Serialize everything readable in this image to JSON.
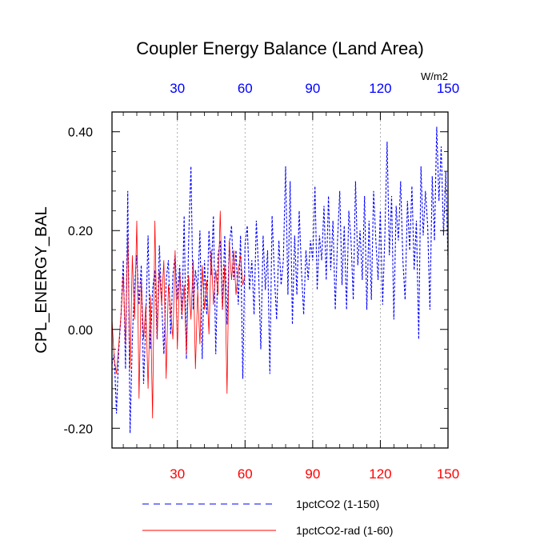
{
  "chart_data": {
    "type": "line",
    "title": "Coupler Energy Balance (Land Area)",
    "ylabel": "CPL_ENERGY_BAL",
    "units_label": "W/m2",
    "xlim": [
      1,
      150
    ],
    "ylim": [
      -0.24,
      0.44
    ],
    "xticks": [
      30,
      60,
      90,
      120,
      150
    ],
    "yticks": [
      -0.2,
      0.0,
      0.2,
      0.4
    ],
    "ytick_labels": [
      "-0.20",
      "0.00",
      "0.20",
      "0.40"
    ],
    "top_axis_color": "#0000ff",
    "bottom_axis_color": "#ff0000",
    "gridlines_x": [
      30,
      60,
      90,
      120
    ],
    "legend_position": "bottom",
    "series": [
      {
        "name": "1pctCO2 (1-150)",
        "color": "#0000ff",
        "style": "dashed",
        "x": [
          1,
          2,
          3,
          4,
          5,
          6,
          7,
          8,
          9,
          10,
          11,
          12,
          13,
          14,
          15,
          16,
          17,
          18,
          19,
          20,
          21,
          22,
          23,
          24,
          25,
          26,
          27,
          28,
          29,
          30,
          31,
          32,
          33,
          34,
          35,
          36,
          37,
          38,
          39,
          40,
          41,
          42,
          43,
          44,
          45,
          46,
          47,
          48,
          49,
          50,
          51,
          52,
          53,
          54,
          55,
          56,
          57,
          58,
          59,
          60,
          61,
          62,
          63,
          64,
          65,
          66,
          67,
          68,
          69,
          70,
          71,
          72,
          73,
          74,
          75,
          76,
          77,
          78,
          79,
          80,
          81,
          82,
          83,
          84,
          85,
          86,
          87,
          88,
          89,
          90,
          91,
          92,
          93,
          94,
          95,
          96,
          97,
          98,
          99,
          100,
          101,
          102,
          103,
          104,
          105,
          106,
          107,
          108,
          109,
          110,
          111,
          112,
          113,
          114,
          115,
          116,
          117,
          118,
          119,
          120,
          121,
          122,
          123,
          124,
          125,
          126,
          127,
          128,
          129,
          130,
          131,
          132,
          133,
          134,
          135,
          136,
          137,
          138,
          139,
          140,
          141,
          142,
          143,
          144,
          145,
          146,
          147,
          148,
          149,
          150
        ],
        "y": [
          -0.07,
          -0.05,
          -0.17,
          -0.04,
          0.03,
          0.14,
          -0.08,
          0.28,
          -0.21,
          -0.02,
          0.09,
          0.15,
          0.05,
          0.13,
          -0.11,
          0.02,
          0.19,
          -0.04,
          0.08,
          0.12,
          -0.02,
          0.17,
          0.06,
          -0.05,
          0.1,
          0.14,
          -0.01,
          0.11,
          0.15,
          0.06,
          0.13,
          0.02,
          0.23,
          -0.06,
          0.18,
          0.33,
          0.04,
          0.12,
          0.08,
          0.2,
          -0.06,
          0.14,
          0.03,
          0.2,
          0.11,
          0.23,
          -0.05,
          0.15,
          0.18,
          0.04,
          0.19,
          0.01,
          0.17,
          0.21,
          0.1,
          0.16,
          0.05,
          0.19,
          -0.1,
          0.17,
          0.21,
          0.08,
          0.14,
          0.03,
          0.22,
          0.12,
          -0.04,
          0.19,
          0.08,
          0.16,
          -0.09,
          0.23,
          0.11,
          0.02,
          0.18,
          0.09,
          0.14,
          0.33,
          0.07,
          0.3,
          0.01,
          0.19,
          0.07,
          0.24,
          0.12,
          0.03,
          0.16,
          0.1,
          0.18,
          0.14,
          0.29,
          0.08,
          0.19,
          0.14,
          0.25,
          0.1,
          0.27,
          0.12,
          0.22,
          0.04,
          0.18,
          0.28,
          0.09,
          0.21,
          0.04,
          0.24,
          0.18,
          0.06,
          0.3,
          0.13,
          0.2,
          0.1,
          0.27,
          0.04,
          0.22,
          0.06,
          0.28,
          0.18,
          0.1,
          0.24,
          0.05,
          0.19,
          0.38,
          0.15,
          0.27,
          0.02,
          0.25,
          0.18,
          0.3,
          0.14,
          0.06,
          0.26,
          0.16,
          0.29,
          0.12,
          0.22,
          -0.02,
          0.33,
          0.19,
          0.28,
          0.21,
          0.04,
          0.31,
          0.18,
          0.41,
          0.26,
          0.37,
          0.19,
          0.32,
          0.14
        ]
      },
      {
        "name": "1pctCO2-rad (1-60)",
        "color": "#ff0000",
        "style": "solid",
        "x": [
          1,
          2,
          3,
          4,
          5,
          6,
          7,
          8,
          9,
          10,
          11,
          12,
          13,
          14,
          15,
          16,
          17,
          18,
          19,
          20,
          21,
          22,
          23,
          24,
          25,
          26,
          27,
          28,
          29,
          30,
          31,
          32,
          33,
          34,
          35,
          36,
          37,
          38,
          39,
          40,
          41,
          42,
          43,
          44,
          45,
          46,
          47,
          48,
          49,
          50,
          51,
          52,
          53,
          54,
          55,
          56,
          57,
          58,
          59,
          60
        ],
        "y": [
          0.02,
          -0.06,
          -0.09,
          -0.03,
          0.03,
          0.11,
          -0.03,
          0.19,
          -0.08,
          0.15,
          0.02,
          0.22,
          -0.14,
          0.1,
          -0.02,
          0.05,
          -0.12,
          0.07,
          -0.18,
          0.22,
          -0.02,
          0.12,
          0.05,
          0.14,
          -0.1,
          0.09,
          0.04,
          -0.02,
          0.16,
          -0.04,
          0.12,
          0.03,
          0.09,
          -0.05,
          0.11,
          0.02,
          0.14,
          -0.08,
          0.08,
          -0.03,
          0.13,
          0.04,
          0.1,
          -0.01,
          0.16,
          0.05,
          0.12,
          0.07,
          0.24,
          0.04,
          0.13,
          -0.13,
          0.18,
          0.1,
          0.16,
          0.07,
          0.12,
          0.15,
          0.09,
          0.11
        ]
      }
    ]
  }
}
